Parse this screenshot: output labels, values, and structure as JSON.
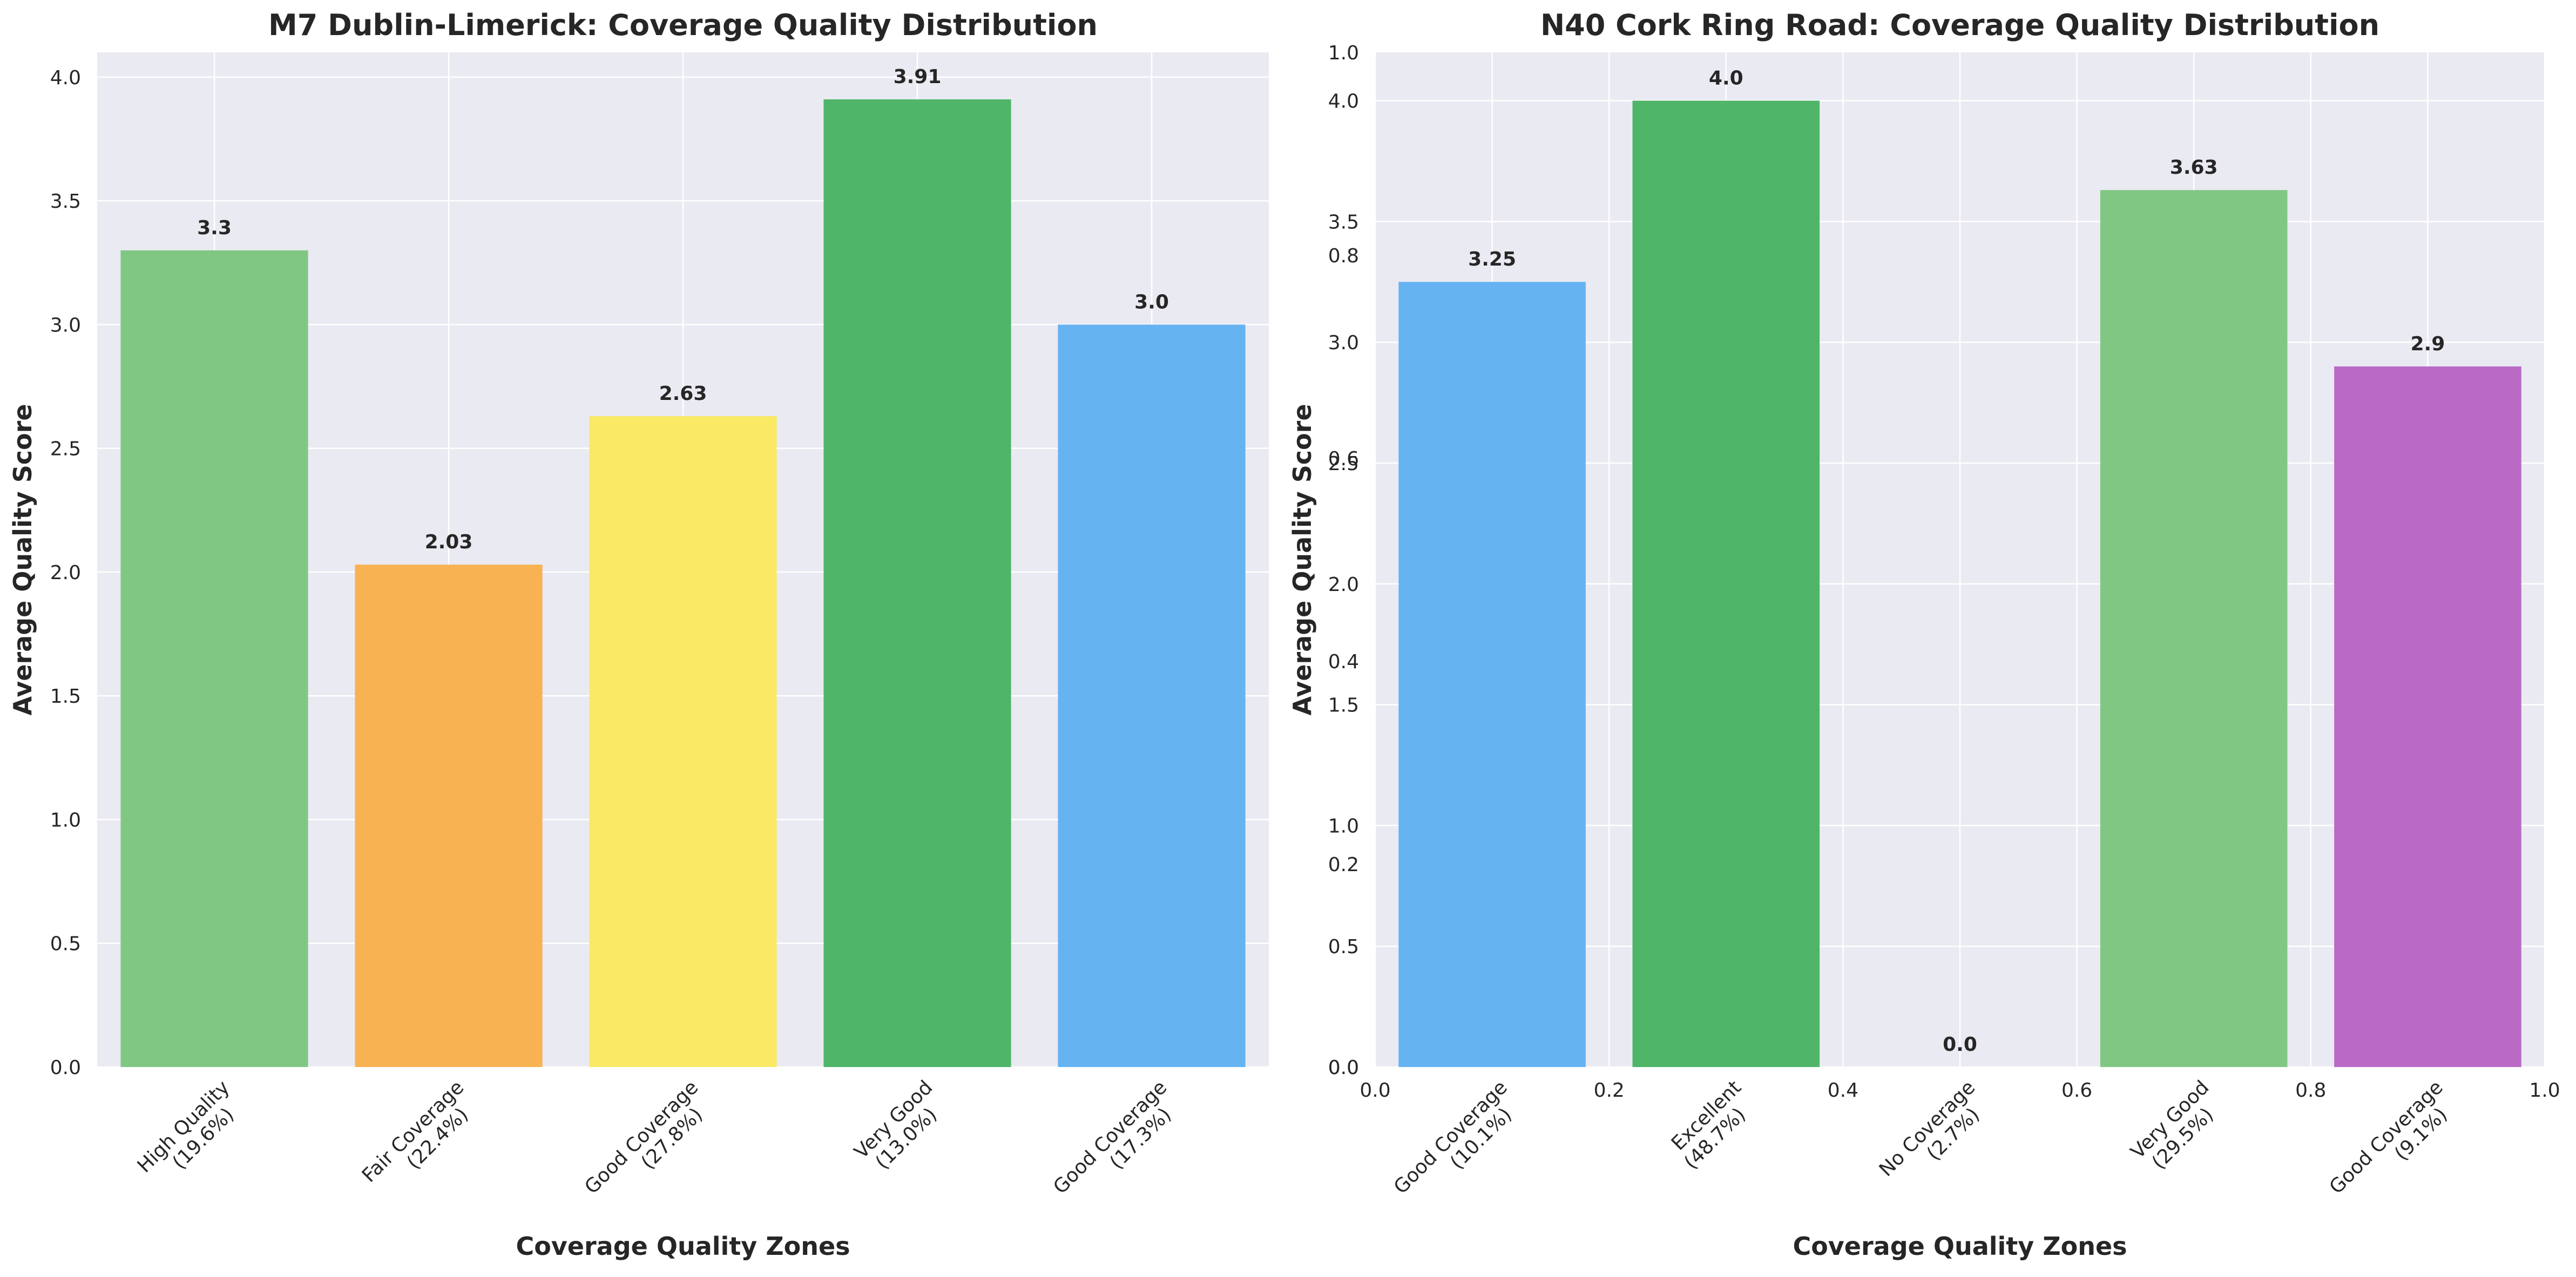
{
  "colors": {
    "plot_background": "#eaeaf2",
    "grid": "#ffffff",
    "text": "#262626",
    "light_green": "#81c784",
    "orange": "#f9b252",
    "yellow": "#f9e964",
    "green": "#4fb569",
    "blue": "#66b3f2",
    "purple": "#b86ac5"
  },
  "chart_data": [
    {
      "type": "bar",
      "title": "M7 Dublin-Limerick: Coverage Quality Distribution",
      "xlabel": "Coverage Quality Zones",
      "ylabel": "Average Quality Score",
      "categories": [
        "High Quality\n(19.6%)",
        "Fair Coverage\n(22.4%)",
        "Good Coverage\n(27.8%)",
        "Very Good\n(13.0%)",
        "Good Coverage\n(17.3%)"
      ],
      "values": [
        3.3,
        2.03,
        2.63,
        3.91,
        3.0
      ],
      "value_labels": [
        "3.3",
        "2.03",
        "2.63",
        "3.91",
        "3.0"
      ],
      "bar_colors": [
        "#81c784",
        "#f9b252",
        "#f9e964",
        "#4fb569",
        "#66b3f2"
      ],
      "ylim": [
        0,
        4.1
      ],
      "yticks": [
        "0.0",
        "0.5",
        "1.0",
        "1.5",
        "2.0",
        "2.5",
        "3.0",
        "3.5",
        "4.0"
      ],
      "grid": true
    },
    {
      "type": "bar",
      "title": "N40 Cork Ring Road: Coverage Quality Distribution",
      "xlabel": "Coverage Quality Zones",
      "ylabel": "Average Quality Score",
      "categories": [
        "Good Coverage\n(10.1%)",
        "Excellent\n(48.7%)",
        "No Coverage\n(2.7%)",
        "Very Good\n(29.5%)",
        "Good Coverage\n(9.1%)"
      ],
      "values": [
        3.25,
        4.0,
        0.0,
        3.63,
        2.9
      ],
      "value_labels": [
        "3.25",
        "4.0",
        "0.0",
        "3.63",
        "2.9"
      ],
      "bar_colors": [
        "#66b3f2",
        "#4fb569",
        "#81c784",
        "#81c784",
        "#b86ac5"
      ],
      "ylim": [
        0,
        4.2
      ],
      "yticks": [
        "0.0",
        "0.5",
        "1.0",
        "1.5",
        "2.0",
        "2.5",
        "3.0",
        "3.5",
        "4.0"
      ],
      "overlay_axis": {
        "xticks": [
          "0.0",
          "0.2",
          "0.4",
          "0.6",
          "0.8",
          "1.0"
        ],
        "yticks": [
          "0.0",
          "0.2",
          "0.4",
          "0.6",
          "0.8",
          "1.0"
        ]
      },
      "grid": true
    }
  ]
}
